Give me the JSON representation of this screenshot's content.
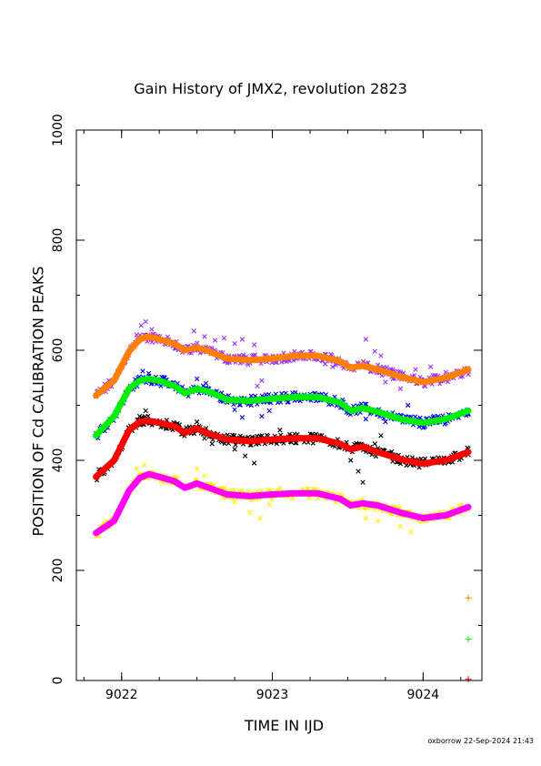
{
  "chart_data": {
    "type": "scatter",
    "title": "Gain History of JMX2, revolution 2823",
    "xlabel": "TIME IN IJD",
    "ylabel": "POSITION OF Cd CALIBRATION PEAKS",
    "xlim": [
      9021.7,
      9024.39
    ],
    "ylim": [
      0,
      1000
    ],
    "x_ticks": [
      9022,
      9023,
      9024
    ],
    "x_minor_step": 0.25,
    "y_ticks": [
      0,
      200,
      400,
      600,
      800,
      1000
    ],
    "y_minor_step": 100,
    "grid": false,
    "footer": "oxborrow 22-Sep-2024 21:43",
    "fit_x": [
      9021.83,
      9021.95,
      9022.05,
      9022.12,
      9022.18,
      9022.25,
      9022.35,
      9022.42,
      9022.5,
      9022.58,
      9022.7,
      9022.85,
      9023.0,
      9023.15,
      9023.3,
      9023.45,
      9023.52,
      9023.6,
      9023.7,
      9023.85,
      9024.0,
      9024.15,
      9024.3
    ],
    "series": [
      {
        "color": "#ff7f00",
        "fit_y": [
          518,
          545,
          598,
          620,
          625,
          620,
          612,
          600,
          605,
          598,
          585,
          582,
          585,
          590,
          590,
          580,
          568,
          572,
          565,
          552,
          542,
          550,
          565
        ],
        "scatter": {
          "color": "#9a30ff",
          "jitter": 22,
          "points": [
            [
              9022.08,
              610
            ],
            [
              9022.1,
              628
            ],
            [
              9022.13,
              645
            ],
            [
              9022.16,
              652
            ],
            [
              9022.2,
              638
            ],
            [
              9022.48,
              635
            ],
            [
              9022.55,
              625
            ],
            [
              9022.62,
              618
            ],
            [
              9022.68,
              622
            ],
            [
              9022.75,
              612
            ],
            [
              9022.8,
              620
            ],
            [
              9022.88,
              610
            ],
            [
              9022.95,
              590
            ],
            [
              9022.9,
              535
            ],
            [
              9022.93,
              545
            ],
            [
              9023.35,
              575
            ],
            [
              9023.4,
              570
            ],
            [
              9023.62,
              620
            ],
            [
              9023.68,
              598
            ],
            [
              9023.72,
              590
            ],
            [
              9023.75,
              542
            ],
            [
              9023.8,
              548
            ],
            [
              9023.85,
              530
            ],
            [
              9023.95,
              565
            ],
            [
              9024.05,
              570
            ],
            [
              9024.15,
              560
            ],
            [
              9024.22,
              558
            ],
            [
              9024.3,
              556
            ]
          ]
        }
      },
      {
        "color": "#00ee00",
        "fit_y": [
          445,
          480,
          530,
          545,
          548,
          545,
          535,
          522,
          530,
          525,
          510,
          508,
          512,
          515,
          515,
          505,
          490,
          495,
          488,
          475,
          468,
          475,
          490
        ],
        "scatter": {
          "color": "#0000ff",
          "jitter": 22,
          "points": [
            [
              9022.1,
              542
            ],
            [
              9022.14,
              562
            ],
            [
              9022.18,
              558
            ],
            [
              9022.5,
              548
            ],
            [
              9022.56,
              540
            ],
            [
              9022.62,
              520
            ],
            [
              9022.7,
              505
            ],
            [
              9022.75,
              492
            ],
            [
              9022.8,
              478
            ],
            [
              9022.86,
              500
            ],
            [
              9022.93,
              480
            ],
            [
              9022.98,
              490
            ],
            [
              9023.05,
              512
            ],
            [
              9023.62,
              475
            ],
            [
              9023.68,
              488
            ],
            [
              9023.75,
              470
            ],
            [
              9023.82,
              478
            ],
            [
              9023.9,
              500
            ],
            [
              9023.98,
              472
            ],
            [
              9024.1,
              480
            ],
            [
              9024.2,
              482
            ],
            [
              9024.3,
              485
            ]
          ]
        }
      },
      {
        "color": "#ff0000",
        "fit_y": [
          370,
          400,
          455,
          470,
          472,
          468,
          462,
          450,
          458,
          448,
          438,
          435,
          438,
          440,
          440,
          430,
          420,
          425,
          415,
          402,
          394,
          400,
          415
        ],
        "scatter": {
          "color": "#000000",
          "jitter": 22,
          "points": [
            [
              9022.12,
              480
            ],
            [
              9022.16,
              490
            ],
            [
              9022.22,
              470
            ],
            [
              9022.3,
              458
            ],
            [
              9022.4,
              452
            ],
            [
              9022.5,
              470
            ],
            [
              9022.55,
              440
            ],
            [
              9022.6,
              430
            ],
            [
              9022.68,
              445
            ],
            [
              9022.75,
              420
            ],
            [
              9022.82,
              408
            ],
            [
              9022.88,
              395
            ],
            [
              9022.95,
              430
            ],
            [
              9023.05,
              455
            ],
            [
              9023.52,
              400
            ],
            [
              9023.57,
              380
            ],
            [
              9023.6,
              360
            ],
            [
              9023.68,
              430
            ],
            [
              9023.72,
              445
            ],
            [
              9023.8,
              410
            ],
            [
              9023.9,
              400
            ],
            [
              9024.0,
              398
            ],
            [
              9024.1,
              405
            ],
            [
              9024.2,
              410
            ],
            [
              9024.3,
              410
            ]
          ]
        }
      },
      {
        "color": "#ff00ff",
        "fit_y": [
          268,
          290,
          345,
          368,
          375,
          370,
          362,
          350,
          358,
          350,
          338,
          335,
          338,
          340,
          340,
          330,
          318,
          322,
          318,
          305,
          295,
          300,
          315
        ],
        "scatter": {
          "color": "#ffee00",
          "jitter": 22,
          "points": [
            [
              9022.1,
              385
            ],
            [
              9022.15,
              392
            ],
            [
              9022.2,
              375
            ],
            [
              9022.5,
              385
            ],
            [
              9022.55,
              372
            ],
            [
              9022.6,
              355
            ],
            [
              9022.68,
              350
            ],
            [
              9022.75,
              325
            ],
            [
              9022.85,
              305
            ],
            [
              9022.92,
              295
            ],
            [
              9022.98,
              320
            ],
            [
              9023.05,
              350
            ],
            [
              9023.62,
              295
            ],
            [
              9023.7,
              290
            ],
            [
              9023.75,
              310
            ],
            [
              9023.85,
              280
            ],
            [
              9023.92,
              270
            ],
            [
              9024.05,
              295
            ],
            [
              9024.2,
              305
            ],
            [
              9024.3,
              310
            ]
          ]
        }
      }
    ],
    "markers": [
      {
        "x": 9024.3,
        "y": 150,
        "color": "#ff7f00",
        "symbol": "+"
      },
      {
        "x": 9024.3,
        "y": 75,
        "color": "#00ee00",
        "symbol": "+"
      },
      {
        "x": 9024.3,
        "y": 2,
        "color": "#ff0000",
        "symbol": "+"
      }
    ]
  }
}
